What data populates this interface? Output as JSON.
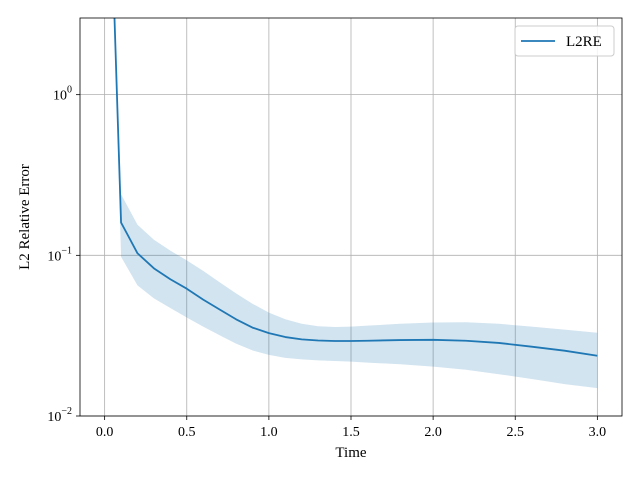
{
  "chart_data": {
    "type": "line",
    "title": "",
    "xlabel": "Time",
    "ylabel": "L2 Relative Error",
    "xlim": [
      -0.15,
      3.15
    ],
    "ylim": [
      0.01,
      3.0
    ],
    "yscale": "log",
    "grid": true,
    "legend_position": "top-right",
    "x_ticks": [
      {
        "value": 0.0,
        "label": "0.0"
      },
      {
        "value": 0.5,
        "label": "0.5"
      },
      {
        "value": 1.0,
        "label": "1.0"
      },
      {
        "value": 1.5,
        "label": "1.5"
      },
      {
        "value": 2.0,
        "label": "2.0"
      },
      {
        "value": 2.5,
        "label": "2.5"
      },
      {
        "value": 3.0,
        "label": "3.0"
      }
    ],
    "y_ticks": [
      {
        "value": 0.01,
        "base": "10",
        "exp": "−2"
      },
      {
        "value": 0.1,
        "base": "10",
        "exp": "−1"
      },
      {
        "value": 1.0,
        "base": "10",
        "exp": "0"
      }
    ],
    "series": [
      {
        "name": "L2RE",
        "color": "#1f77b4",
        "band_color": "#1f77b4",
        "x": [
          0.06,
          0.1,
          0.2,
          0.3,
          0.4,
          0.5,
          0.6,
          0.7,
          0.8,
          0.9,
          1.0,
          1.1,
          1.2,
          1.3,
          1.4,
          1.5,
          1.6,
          1.8,
          2.0,
          2.2,
          2.4,
          2.6,
          2.8,
          3.0
        ],
        "y": [
          3.0,
          0.16,
          0.103,
          0.083,
          0.071,
          0.062,
          0.053,
          0.046,
          0.04,
          0.0355,
          0.0328,
          0.031,
          0.03,
          0.0295,
          0.0293,
          0.0293,
          0.0294,
          0.0297,
          0.0298,
          0.0294,
          0.0285,
          0.027,
          0.0255,
          0.0237
        ],
        "upper": [
          3.0,
          0.24,
          0.155,
          0.125,
          0.107,
          0.093,
          0.08,
          0.068,
          0.058,
          0.05,
          0.044,
          0.04,
          0.0375,
          0.0362,
          0.0358,
          0.036,
          0.0365,
          0.0375,
          0.0382,
          0.0383,
          0.0375,
          0.036,
          0.0345,
          0.033
        ],
        "lower": [
          3.0,
          0.098,
          0.065,
          0.054,
          0.047,
          0.041,
          0.036,
          0.0318,
          0.0282,
          0.0256,
          0.024,
          0.023,
          0.0225,
          0.0222,
          0.022,
          0.0218,
          0.0215,
          0.021,
          0.0203,
          0.0194,
          0.0182,
          0.017,
          0.0158,
          0.0149
        ]
      }
    ]
  }
}
